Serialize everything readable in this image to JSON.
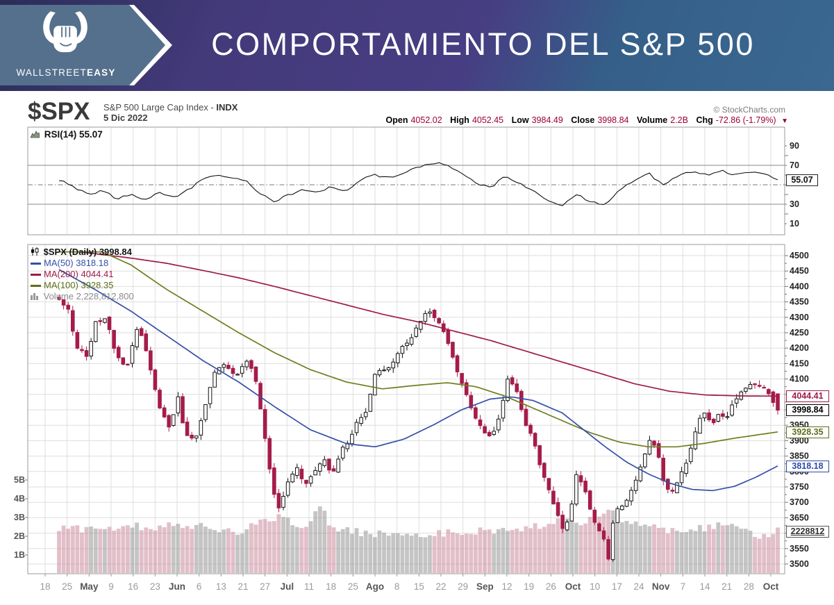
{
  "banner": {
    "brand_regular": "WALLSTREET",
    "brand_bold": "EASY",
    "title": "COMPORTAMIENTO DEL S&P 500"
  },
  "chart_header": {
    "symbol": "$SPX",
    "name_prefix": "S&P 500 Large Cap Index - ",
    "name_bold": "INDX",
    "date": "5 Dic 2022",
    "watermark": "© StockCharts.com",
    "quote": {
      "open_label": "Open",
      "open_value": "4052.02",
      "high_label": "High",
      "high_value": "4052.45",
      "low_label": "Low",
      "low_value": "3984.49",
      "close_label": "Close",
      "close_value": "3998.84",
      "volume_label": "Volume",
      "volume_value": "2.2B",
      "chg_label": "Chg",
      "chg_value": "-72.86 (-1.79%)",
      "chg_direction": "down"
    }
  },
  "colors": {
    "banner_purple": "#473d82",
    "banner_steel": "#35618b",
    "logo_slate": "#54708c",
    "up_candle": "#ffffff",
    "up_candle_border": "#111111",
    "down_candle": "#a51c49",
    "quote_value_red": "#9e0039",
    "ma50_blue": "#3350a8",
    "ma100_olive": "#6f7d1c",
    "ma200_maroon": "#9e1b46",
    "grid": "#dedede",
    "panel_border": "#9a9a9a"
  },
  "chart_data": {
    "type": "candlestick",
    "symbol": "$SPX",
    "timeframe": "Daily",
    "x_ticks": [
      "18",
      "25",
      "May",
      "9",
      "16",
      "23",
      "Jun",
      "6",
      "13",
      "21",
      "27",
      "Jul",
      "11",
      "18",
      "25",
      "Ago",
      "8",
      "15",
      "22",
      "29",
      "Sep",
      "12",
      "19",
      "26",
      "Oct",
      "10",
      "17",
      "24",
      "Nov",
      "7",
      "14",
      "21",
      "28",
      "Oct"
    ],
    "rsi": {
      "legend": "RSI(14) 55.07",
      "last": 55.07,
      "overbought": 70,
      "midline": 50,
      "oversold": 30,
      "y_ticks": [
        90,
        70,
        30,
        10
      ],
      "path": [
        [
          0,
          55
        ],
        [
          0.02,
          48
        ],
        [
          0.04,
          40
        ],
        [
          0.06,
          44
        ],
        [
          0.08,
          36
        ],
        [
          0.1,
          40
        ],
        [
          0.12,
          35
        ],
        [
          0.14,
          42
        ],
        [
          0.16,
          37
        ],
        [
          0.18,
          45
        ],
        [
          0.2,
          55
        ],
        [
          0.22,
          60
        ],
        [
          0.24,
          57
        ],
        [
          0.26,
          55
        ],
        [
          0.28,
          40
        ],
        [
          0.3,
          33
        ],
        [
          0.32,
          40
        ],
        [
          0.34,
          45
        ],
        [
          0.36,
          42
        ],
        [
          0.38,
          48
        ],
        [
          0.4,
          44
        ],
        [
          0.42,
          55
        ],
        [
          0.44,
          60
        ],
        [
          0.46,
          57
        ],
        [
          0.48,
          62
        ],
        [
          0.5,
          68
        ],
        [
          0.52,
          73
        ],
        [
          0.54,
          70
        ],
        [
          0.56,
          62
        ],
        [
          0.58,
          52
        ],
        [
          0.6,
          47
        ],
        [
          0.62,
          58
        ],
        [
          0.64,
          52
        ],
        [
          0.66,
          44
        ],
        [
          0.68,
          34
        ],
        [
          0.7,
          28
        ],
        [
          0.72,
          40
        ],
        [
          0.74,
          33
        ],
        [
          0.76,
          29
        ],
        [
          0.78,
          45
        ],
        [
          0.8,
          55
        ],
        [
          0.82,
          62
        ],
        [
          0.84,
          50
        ],
        [
          0.86,
          58
        ],
        [
          0.88,
          64
        ],
        [
          0.9,
          60
        ],
        [
          0.92,
          65
        ],
        [
          0.94,
          60
        ],
        [
          0.96,
          64
        ],
        [
          0.98,
          62
        ],
        [
          1,
          55.07
        ]
      ]
    },
    "price": {
      "legend_main": "$SPX (Daily) 3998.84",
      "y_min": 3500,
      "y_max": 4500,
      "y_step": 50,
      "last_open": 4052.02,
      "last_high": 4052.45,
      "last_low": 3984.49,
      "last_close": 3998.84,
      "close_anchors": [
        [
          0,
          4360
        ],
        [
          0.012,
          4330
        ],
        [
          0.025,
          4200
        ],
        [
          0.04,
          4175
        ],
        [
          0.05,
          4280
        ],
        [
          0.065,
          4300
        ],
        [
          0.08,
          4170
        ],
        [
          0.095,
          4140
        ],
        [
          0.11,
          4280
        ],
        [
          0.125,
          4155
        ],
        [
          0.14,
          4005
        ],
        [
          0.155,
          3935
        ],
        [
          0.165,
          4050
        ],
        [
          0.175,
          3920
        ],
        [
          0.19,
          3905
        ],
        [
          0.2,
          3980
        ],
        [
          0.215,
          4120
        ],
        [
          0.23,
          4150
        ],
        [
          0.245,
          4105
        ],
        [
          0.26,
          4160
        ],
        [
          0.272,
          4115
        ],
        [
          0.285,
          3935
        ],
        [
          0.297,
          3750
        ],
        [
          0.305,
          3680
        ],
        [
          0.318,
          3760
        ],
        [
          0.33,
          3820
        ],
        [
          0.342,
          3755
        ],
        [
          0.355,
          3800
        ],
        [
          0.368,
          3845
        ],
        [
          0.38,
          3790
        ],
        [
          0.392,
          3865
        ],
        [
          0.403,
          3900
        ],
        [
          0.415,
          3960
        ],
        [
          0.428,
          4000
        ],
        [
          0.44,
          4120
        ],
        [
          0.452,
          4130
        ],
        [
          0.465,
          4150
        ],
        [
          0.478,
          4210
        ],
        [
          0.49,
          4230
        ],
        [
          0.503,
          4290
        ],
        [
          0.515,
          4325
        ],
        [
          0.528,
          4280
        ],
        [
          0.54,
          4230
        ],
        [
          0.552,
          4140
        ],
        [
          0.565,
          4055
        ],
        [
          0.578,
          3985
        ],
        [
          0.59,
          3925
        ],
        [
          0.602,
          3910
        ],
        [
          0.613,
          3980
        ],
        [
          0.625,
          4110
        ],
        [
          0.637,
          4060
        ],
        [
          0.648,
          3960
        ],
        [
          0.66,
          3900
        ],
        [
          0.672,
          3800
        ],
        [
          0.684,
          3720
        ],
        [
          0.695,
          3650
        ],
        [
          0.703,
          3600
        ],
        [
          0.712,
          3680
        ],
        [
          0.72,
          3790
        ],
        [
          0.73,
          3750
        ],
        [
          0.74,
          3670
        ],
        [
          0.75,
          3610
        ],
        [
          0.758,
          3580
        ],
        [
          0.766,
          3500
        ],
        [
          0.772,
          3670
        ],
        [
          0.782,
          3680
        ],
        [
          0.792,
          3720
        ],
        [
          0.802,
          3765
        ],
        [
          0.812,
          3835
        ],
        [
          0.822,
          3905
        ],
        [
          0.832,
          3870
        ],
        [
          0.842,
          3760
        ],
        [
          0.852,
          3725
        ],
        [
          0.862,
          3775
        ],
        [
          0.875,
          3835
        ],
        [
          0.888,
          3955
        ],
        [
          0.898,
          3992
        ],
        [
          0.908,
          3950
        ],
        [
          0.918,
          3992
        ],
        [
          0.928,
          3962
        ],
        [
          0.938,
          4030
        ],
        [
          0.948,
          4052
        ],
        [
          0.958,
          4082
        ],
        [
          0.968,
          4078
        ],
        [
          0.978,
          4072
        ],
        [
          0.988,
          4055
        ],
        [
          1,
          3998.84
        ]
      ],
      "ma50": {
        "label": "MA(50) 3818.18",
        "last": 3818.18,
        "color": "#3350a8",
        "anchors": [
          [
            0,
            4455
          ],
          [
            0.05,
            4390
          ],
          [
            0.1,
            4320
          ],
          [
            0.15,
            4240
          ],
          [
            0.2,
            4160
          ],
          [
            0.25,
            4090
          ],
          [
            0.3,
            4010
          ],
          [
            0.35,
            3935
          ],
          [
            0.4,
            3890
          ],
          [
            0.44,
            3880
          ],
          [
            0.48,
            3905
          ],
          [
            0.52,
            3950
          ],
          [
            0.56,
            4000
          ],
          [
            0.6,
            4035
          ],
          [
            0.63,
            4042
          ],
          [
            0.66,
            4030
          ],
          [
            0.7,
            3990
          ],
          [
            0.73,
            3935
          ],
          [
            0.76,
            3880
          ],
          [
            0.79,
            3830
          ],
          [
            0.82,
            3792
          ],
          [
            0.85,
            3762
          ],
          [
            0.88,
            3742
          ],
          [
            0.91,
            3738
          ],
          [
            0.94,
            3752
          ],
          [
            0.97,
            3782
          ],
          [
            1,
            3818.18
          ]
        ]
      },
      "ma100": {
        "label": "MA(100) 3928.35",
        "last": 3928.35,
        "color": "#6f7d1c",
        "anchors": [
          [
            0.06,
            4512
          ],
          [
            0.1,
            4470
          ],
          [
            0.15,
            4390
          ],
          [
            0.2,
            4320
          ],
          [
            0.25,
            4250
          ],
          [
            0.3,
            4185
          ],
          [
            0.35,
            4130
          ],
          [
            0.4,
            4090
          ],
          [
            0.45,
            4068
          ],
          [
            0.5,
            4080
          ],
          [
            0.54,
            4088
          ],
          [
            0.58,
            4075
          ],
          [
            0.62,
            4045
          ],
          [
            0.66,
            4005
          ],
          [
            0.7,
            3965
          ],
          [
            0.74,
            3925
          ],
          [
            0.78,
            3895
          ],
          [
            0.82,
            3880
          ],
          [
            0.86,
            3880
          ],
          [
            0.9,
            3892
          ],
          [
            0.94,
            3908
          ],
          [
            1,
            3928.35
          ]
        ]
      },
      "ma200": {
        "label": "MA(200) 4044.41",
        "last": 4044.41,
        "color": "#9e1b46",
        "anchors": [
          [
            0.03,
            4512
          ],
          [
            0.1,
            4492
          ],
          [
            0.15,
            4475
          ],
          [
            0.2,
            4452
          ],
          [
            0.25,
            4428
          ],
          [
            0.3,
            4400
          ],
          [
            0.35,
            4370
          ],
          [
            0.4,
            4340
          ],
          [
            0.45,
            4310
          ],
          [
            0.5,
            4285
          ],
          [
            0.55,
            4255
          ],
          [
            0.6,
            4225
          ],
          [
            0.65,
            4190
          ],
          [
            0.7,
            4155
          ],
          [
            0.75,
            4120
          ],
          [
            0.8,
            4085
          ],
          [
            0.85,
            4060
          ],
          [
            0.9,
            4048
          ],
          [
            0.95,
            4045
          ],
          [
            1,
            4044.41
          ]
        ]
      },
      "volume": {
        "label": "Volume 2,228,812,800",
        "last_billions": 2.228812,
        "y_ticks": [
          "5B",
          "4B",
          "3B",
          "2B",
          "1B"
        ],
        "anchors": [
          [
            0,
            2.3
          ],
          [
            0.08,
            2.45
          ],
          [
            0.15,
            2.5
          ],
          [
            0.2,
            2.45
          ],
          [
            0.25,
            2.1
          ],
          [
            0.29,
            2.9
          ],
          [
            0.31,
            3.0
          ],
          [
            0.34,
            2.4
          ],
          [
            0.365,
            3.5
          ],
          [
            0.38,
            2.3
          ],
          [
            0.42,
            2.15
          ],
          [
            0.46,
            2.1
          ],
          [
            0.5,
            2.05
          ],
          [
            0.54,
            2.15
          ],
          [
            0.58,
            2.25
          ],
          [
            0.62,
            2.3
          ],
          [
            0.66,
            2.45
          ],
          [
            0.7,
            2.8
          ],
          [
            0.73,
            2.6
          ],
          [
            0.755,
            3.1
          ],
          [
            0.766,
            3.3
          ],
          [
            0.79,
            2.6
          ],
          [
            0.82,
            2.45
          ],
          [
            0.85,
            2.3
          ],
          [
            0.88,
            2.35
          ],
          [
            0.91,
            2.5
          ],
          [
            0.932,
            2.75
          ],
          [
            0.95,
            2.4
          ],
          [
            0.97,
            2.1
          ],
          [
            0.985,
            1.8
          ],
          [
            1,
            2.23
          ]
        ]
      }
    },
    "axis_boxes": {
      "rsi": "55.07",
      "ma200": "4044.41",
      "close": "3998.84",
      "ma100": "3928.35",
      "ma50": "3818.18",
      "volume": "2228812"
    }
  }
}
